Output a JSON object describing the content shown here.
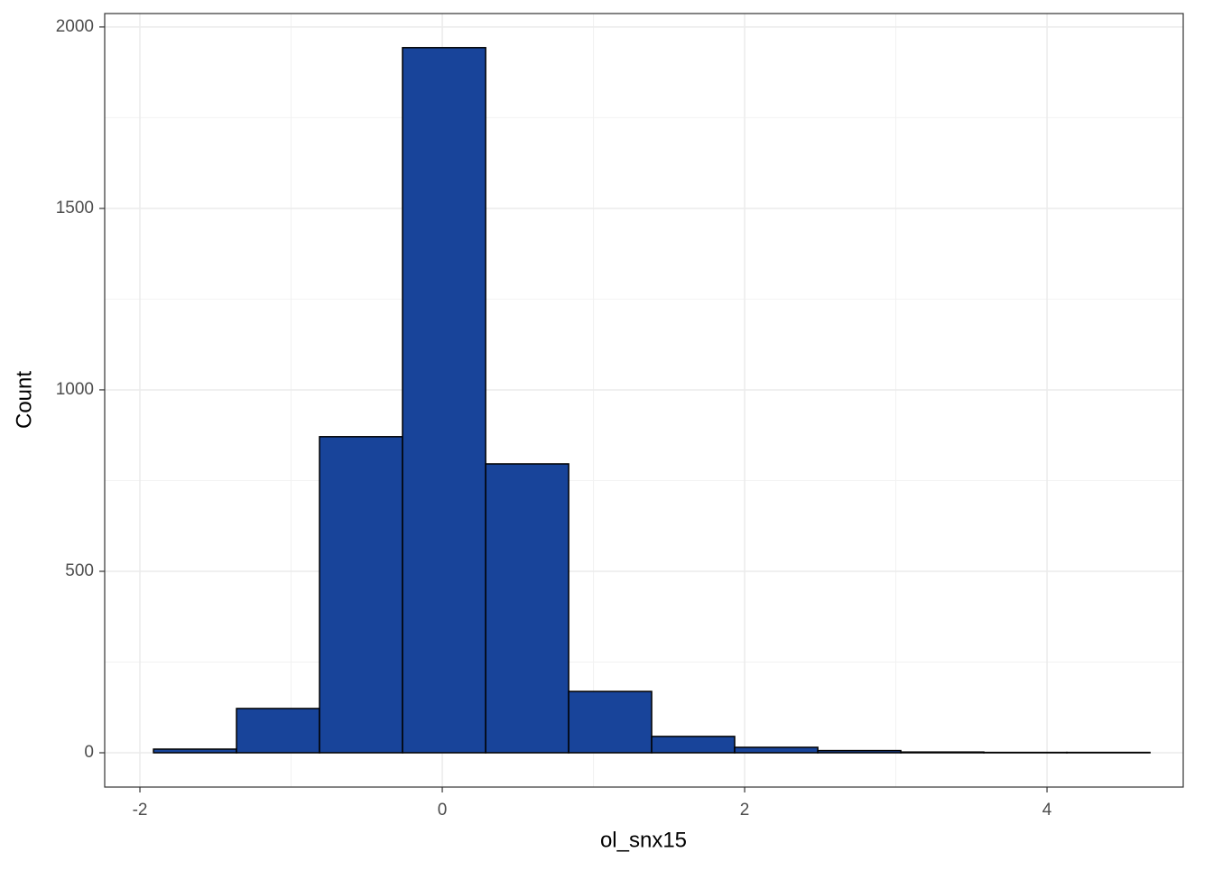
{
  "chart_data": {
    "type": "histogram",
    "x_label": "ol_snx15",
    "y_label": "Count",
    "bins": [
      -1.91,
      -1.361,
      -0.812,
      -0.263,
      0.287,
      0.836,
      1.385,
      1.934,
      2.484,
      3.033,
      3.582,
      4.131,
      4.681
    ],
    "values": [
      10,
      122,
      871,
      1943,
      796,
      169,
      45,
      15,
      6,
      2,
      1,
      1
    ],
    "color": "#18449a",
    "edge_color": "#000000",
    "xlim": [
      -2.233,
      4.901
    ],
    "xticks": [
      -2,
      0,
      2,
      4
    ],
    "minor_xticks": [
      -1,
      1,
      3
    ],
    "ylim": [
      -94.5,
      2037
    ],
    "yticks": [
      0,
      500,
      1000,
      1500,
      2000
    ],
    "minor_yticks": [
      250,
      750,
      1250,
      1750
    ],
    "grid": true
  }
}
